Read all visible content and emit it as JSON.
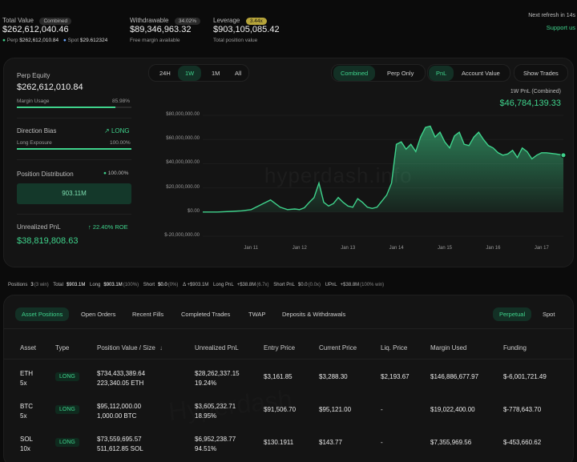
{
  "header": {
    "total_value_label": "Total Value",
    "combined_pill": "Combined",
    "total_value": "$262,612,040.46",
    "perp_label": "Perp",
    "perp_value": "$262,612,010.84",
    "spot_label": "Spot",
    "spot_value": "$29.612324",
    "withdrawable_label": "Withdrawable",
    "withdrawable_pct": "34.02%",
    "withdrawable_value": "$89,346,963.32",
    "withdrawable_sub": "Free margin available",
    "leverage_label": "Leverage",
    "leverage_pill": "3.44x",
    "leverage_value": "$903,105,085.42",
    "leverage_sub": "Total position value",
    "refresh_text": "Next refresh in 14s",
    "support_text": "Support us"
  },
  "summary": {
    "perp_equity_label": "Perp Equity",
    "perp_equity_value": "$262,612,010.84",
    "margin_usage_label": "Margin Usage",
    "margin_usage_value": "85.98%",
    "margin_usage_fraction": 0.86,
    "direction_bias_label": "Direction Bias",
    "direction_bias_value": "LONG",
    "long_exposure_label": "Long Exposure",
    "long_exposure_value": "100.00%",
    "long_exposure_fraction": 1.0,
    "position_distribution_label": "Position Distribution",
    "position_distribution_pct": "100.00%",
    "position_distribution_amount": "903.11M",
    "unrealized_pnl_label": "Unrealized PnL",
    "roe_value": "22.40% ROE",
    "unrealized_pnl_value": "$38,819,808.63"
  },
  "chart_controls": {
    "ranges": [
      "24H",
      "1W",
      "1M",
      "All"
    ],
    "active_range": "1W",
    "views": [
      "Combined",
      "Perp Only"
    ],
    "active_view": "Combined",
    "metrics": [
      "PnL",
      "Account Value"
    ],
    "active_metric": "PnL",
    "show_trades": "Show Trades",
    "pnl_title": "1W PnL (Combined)",
    "pnl_value": "$46,784,139.33",
    "watermark": "hyperdash.info"
  },
  "chart_data": {
    "type": "area",
    "title": "1W PnL (Combined)",
    "xlabel": "",
    "ylabel": "",
    "ylim": [
      -20000000,
      80000000
    ],
    "y_ticks": [
      "$80,000,000.00",
      "$60,000,000.00",
      "$40,000,000.00",
      "$20,000,000.00",
      "$0.00",
      "$-20,000,000.00"
    ],
    "y_tick_values": [
      80000000,
      60000000,
      40000000,
      20000000,
      0,
      -20000000
    ],
    "x_ticks": [
      "Jan 11",
      "Jan 12",
      "Jan 13",
      "Jan 14",
      "Jan 15",
      "Jan 16",
      "Jan 17"
    ],
    "x_tick_values": [
      11,
      12,
      13,
      14,
      15,
      16,
      17
    ],
    "x": [
      10.0,
      10.3,
      10.6,
      10.8,
      11.0,
      11.2,
      11.4,
      11.6,
      11.75,
      11.9,
      12.0,
      12.1,
      12.2,
      12.3,
      12.4,
      12.5,
      12.6,
      12.7,
      12.8,
      12.9,
      13.0,
      13.1,
      13.2,
      13.3,
      13.4,
      13.5,
      13.6,
      13.7,
      13.8,
      13.9,
      14.0,
      14.1,
      14.2,
      14.3,
      14.4,
      14.5,
      14.6,
      14.7,
      14.8,
      14.9,
      15.0,
      15.1,
      15.2,
      15.3,
      15.4,
      15.5,
      15.6,
      15.7,
      15.8,
      15.9,
      16.0,
      16.1,
      16.2,
      16.3,
      16.4,
      16.5,
      16.6,
      16.7,
      16.8,
      16.9,
      17.0,
      17.1,
      17.2,
      17.3,
      17.45
    ],
    "values": [
      0,
      0,
      500000,
      1000000,
      2000000,
      6000000,
      10000000,
      4000000,
      2000000,
      2500000,
      2000000,
      3500000,
      8000000,
      12000000,
      24000000,
      8000000,
      5000000,
      7000000,
      12000000,
      8000000,
      5000000,
      4000000,
      11000000,
      8000000,
      4000000,
      3000000,
      4000000,
      9000000,
      14000000,
      24000000,
      56000000,
      58000000,
      52000000,
      56000000,
      50000000,
      62000000,
      70000000,
      71000000,
      62000000,
      66000000,
      58000000,
      53000000,
      63000000,
      66000000,
      56000000,
      55000000,
      62000000,
      66000000,
      60000000,
      55000000,
      53000000,
      49000000,
      47000000,
      48000000,
      51000000,
      45000000,
      53000000,
      50000000,
      44000000,
      47000000,
      49000000,
      49000000,
      48500000,
      48000000,
      47000000
    ],
    "series": [
      {
        "name": "PnL (Combined)"
      }
    ],
    "color": "#3fd38c"
  },
  "status": {
    "positions_label": "Positions",
    "positions_count": "3",
    "positions_win": "(3 win)",
    "total_label": "Total",
    "total_value": "$903.1M",
    "long_label": "Long",
    "long_value": "$903.1M",
    "long_pct": "(100%)",
    "short_label": "Short",
    "short_value": "$0.0",
    "short_pct": "(0%)",
    "delta_value": "Δ +$903.1M",
    "long_pnl_label": "Long PnL",
    "long_pnl_value": "+$38.8M",
    "long_pnl_mult": "(6.7x)",
    "short_pnl_label": "Short PnL",
    "short_pnl_value": "$0.0",
    "short_pnl_mult": "(0.0x)",
    "upnl_label": "UPnL",
    "upnl_value": "+$38.8M",
    "upnl_win": "(100% win)"
  },
  "tabs": [
    "Asset Positions",
    "Open Orders",
    "Recent Fills",
    "Completed Trades",
    "TWAP",
    "Deposits & Withdrawals"
  ],
  "active_tab": "Asset Positions",
  "market_toggle": [
    "Perpetual",
    "Spot"
  ],
  "active_market": "Perpetual",
  "table": {
    "columns": [
      "Asset",
      "Type",
      "Position Value / Size",
      "Unrealized PnL",
      "Entry Price",
      "Current Price",
      "Liq. Price",
      "Margin Used",
      "Funding"
    ],
    "sort_icon": "↓",
    "watermark": "Hyperdash",
    "rows": [
      {
        "asset": "ETH",
        "leverage": "5x",
        "type": "LONG",
        "value": "$734,433,389.64",
        "size": "223,340.05 ETH",
        "pnl": "$28,262,337.15",
        "pnl_pct": "19.24%",
        "entry": "$3,161.85",
        "current": "$3,288.30",
        "liq": "$2,193.67",
        "margin": "$146,886,677.97",
        "funding": "$-6,001,721.49"
      },
      {
        "asset": "BTC",
        "leverage": "5x",
        "type": "LONG",
        "value": "$95,112,000.00",
        "size": "1,000.00 BTC",
        "pnl": "$3,605,232.71",
        "pnl_pct": "18.95%",
        "entry": "$91,506.70",
        "current": "$95,121.00",
        "liq": "-",
        "margin": "$19,022,400.00",
        "funding": "$-778,643.70"
      },
      {
        "asset": "SOL",
        "leverage": "10x",
        "type": "LONG",
        "value": "$73,559,695.57",
        "size": "511,612.85 SOL",
        "pnl": "$6,952,238.77",
        "pnl_pct": "94.51%",
        "entry": "$130.1911",
        "current": "$143.77",
        "liq": "-",
        "margin": "$7,355,969.56",
        "funding": "$-453,660.62"
      }
    ]
  },
  "colors": {
    "accent": "#3fd38c",
    "negative": "#ef5a5a",
    "background": "#0b0b0b",
    "leverage_pill": "#b6a43a"
  },
  "icons": [
    "trend-up-icon",
    "arrow-up-icon",
    "dot-icon",
    "sort-down-icon"
  ]
}
